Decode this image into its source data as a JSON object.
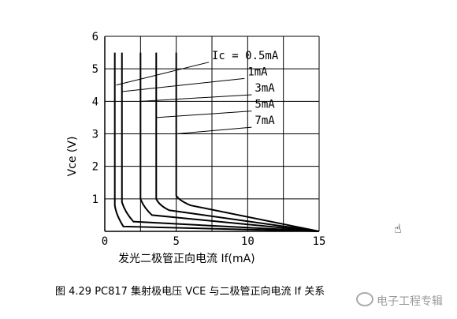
{
  "chart_data": {
    "type": "line",
    "xlabel": "发光二极管正向电流 If(mA)",
    "ylabel": "Vce (V)",
    "xlim": [
      0,
      15
    ],
    "ylim": [
      0,
      6
    ],
    "xticks": [
      "0",
      "5",
      "10",
      "15"
    ],
    "yticks": [
      "1",
      "2",
      "3",
      "4",
      "5",
      "6"
    ],
    "grid": true,
    "series": [
      {
        "name": "Ic = 0.5mA",
        "x": [
          0.7,
          0.7,
          0.8,
          1.3,
          15
        ],
        "y": [
          5.5,
          0.8,
          0.5,
          0.15,
          0
        ]
      },
      {
        "name": "1mA",
        "x": [
          1.2,
          1.2,
          1.4,
          2.0,
          15
        ],
        "y": [
          5.5,
          0.9,
          0.6,
          0.3,
          0
        ]
      },
      {
        "name": "3mA",
        "x": [
          2.5,
          2.5,
          2.7,
          3.3,
          15
        ],
        "y": [
          5.5,
          1.0,
          0.75,
          0.5,
          0
        ]
      },
      {
        "name": "5mA",
        "x": [
          3.6,
          3.6,
          3.8,
          4.5,
          15
        ],
        "y": [
          5.5,
          1.0,
          0.8,
          0.65,
          0
        ]
      },
      {
        "name": "7mA",
        "x": [
          5.0,
          5.0,
          5.2,
          6.0,
          15
        ],
        "y": [
          5.5,
          1.1,
          0.95,
          0.8,
          0
        ]
      }
    ],
    "annotations": [
      {
        "text": "Ic = 0.5mA",
        "point": [
          0.8,
          4.5
        ],
        "label_at": [
          7.5,
          5.3
        ]
      },
      {
        "text": "1mA",
        "point": [
          1.2,
          4.3
        ],
        "label_at": [
          10.0,
          4.8
        ]
      },
      {
        "text": "3mA",
        "point": [
          2.5,
          4.0
        ],
        "label_at": [
          10.5,
          4.3
        ]
      },
      {
        "text": "5mA",
        "point": [
          3.6,
          3.5
        ],
        "label_at": [
          10.5,
          3.8
        ]
      },
      {
        "text": "7mA",
        "point": [
          5.0,
          3.0
        ],
        "label_at": [
          10.5,
          3.3
        ]
      }
    ]
  },
  "caption": "图 4.29 PC817 集射极电压 VCE 与二极管正向电流 If 关系",
  "watermark": "电子工程专辑"
}
